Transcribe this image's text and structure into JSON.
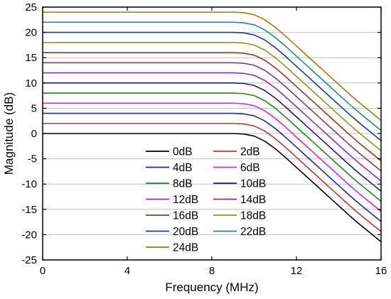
{
  "chart_data": {
    "type": "line",
    "xlabel": "Frequency (MHz)",
    "ylabel": "Magnitude (dB)",
    "xlim": [
      0,
      16
    ],
    "ylim": [
      -25,
      25
    ],
    "xticks": [
      "0",
      "4",
      "8",
      "12",
      "16"
    ],
    "yticks": [
      "-25",
      "-20",
      "-15",
      "-10",
      "-5",
      "0",
      "5",
      "10",
      "15",
      "20",
      "25"
    ],
    "grid": "horizontal",
    "legend_position": "lower-right",
    "x": [
      0,
      1,
      2,
      3,
      4,
      5,
      6,
      7,
      8,
      9,
      9.5,
      10,
      10.5,
      11,
      11.5,
      12,
      12.5,
      13,
      13.5,
      14,
      14.5,
      15,
      15.5,
      16
    ],
    "shape": [
      0,
      0,
      0,
      0,
      0,
      0,
      0,
      0,
      0,
      0,
      -0.1,
      -0.5,
      -1.5,
      -3.0,
      -4.8,
      -6.7,
      -8.6,
      -10.5,
      -12.4,
      -14.3,
      -16.2,
      -18.0,
      -19.7,
      -21.4
    ],
    "series": [
      {
        "name": "0dB",
        "offset": 0,
        "color": "#000000"
      },
      {
        "name": "2dB",
        "offset": 2,
        "color": "#c0392b"
      },
      {
        "name": "4dB",
        "offset": 4,
        "color": "#1f1fd6"
      },
      {
        "name": "6dB",
        "offset": 6,
        "color": "#e020e0"
      },
      {
        "name": "8dB",
        "offset": 8,
        "color": "#1a8c1a"
      },
      {
        "name": "10dB",
        "offset": 10,
        "color": "#1a1a8c"
      },
      {
        "name": "12dB",
        "offset": 12,
        "color": "#8a2be2"
      },
      {
        "name": "14dB",
        "offset": 14,
        "color": "#8b3a62"
      },
      {
        "name": "16dB",
        "offset": 16,
        "color": "#a0341e"
      },
      {
        "name": "18dB",
        "offset": 18,
        "color": "#8c9a1a"
      },
      {
        "name": "20dB",
        "offset": 20,
        "color": "#1a3a9c"
      },
      {
        "name": "22dB",
        "offset": 22,
        "color": "#1a8c8c"
      },
      {
        "name": "24dB",
        "offset": 24,
        "color": "#9c7a12"
      }
    ]
  }
}
